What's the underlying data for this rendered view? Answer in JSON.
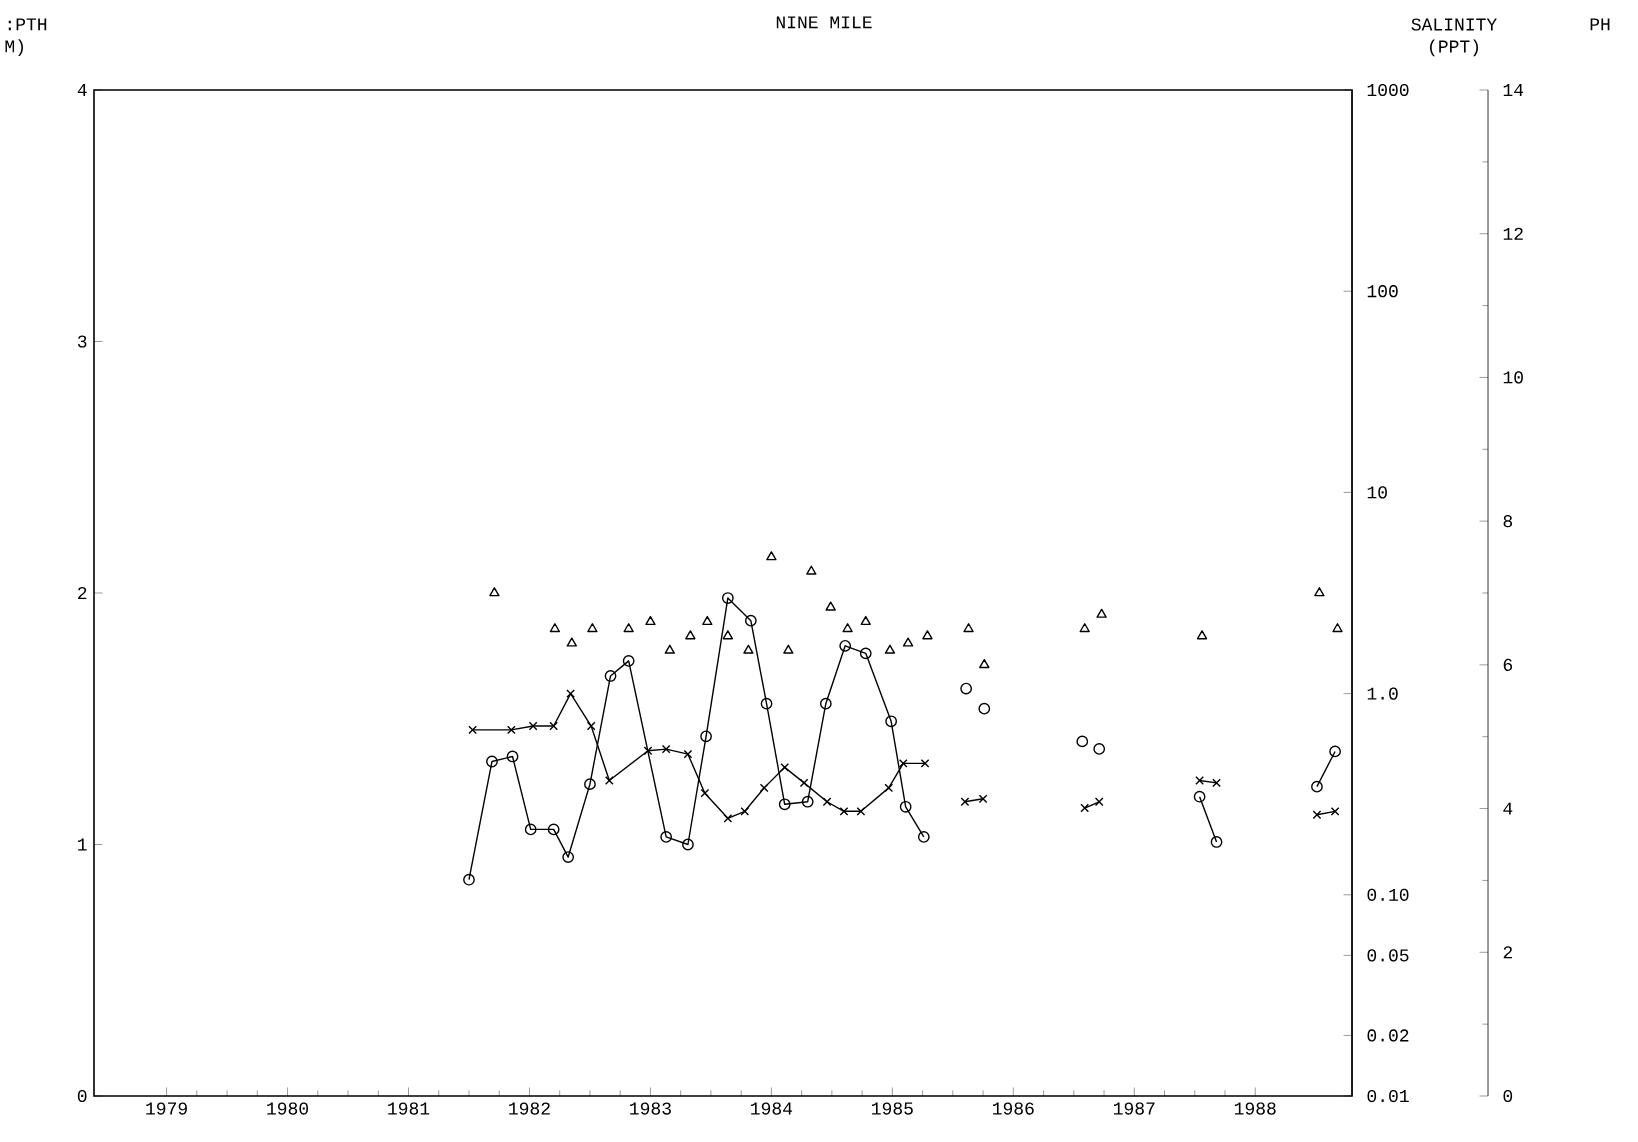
{
  "chart_data": {
    "type": "line",
    "title": "NINE MILE",
    "ylabel": ":PTH M)",
    "y2label": "SALINITY (PPT)",
    "y3label": "PH",
    "xlim": [
      1978.4,
      1988.8
    ],
    "xticks": [
      {
        "value": 1979,
        "label": "1979"
      },
      {
        "value": 1980,
        "label": "1980"
      },
      {
        "value": 1981,
        "label": "1981"
      },
      {
        "value": 1982,
        "label": "1982"
      },
      {
        "value": 1983,
        "label": "1983"
      },
      {
        "value": 1984,
        "label": "1984"
      },
      {
        "value": 1985,
        "label": "1985"
      },
      {
        "value": 1986,
        "label": "1986"
      },
      {
        "value": 1987,
        "label": "1987"
      },
      {
        "value": 1988,
        "label": "1988"
      }
    ],
    "ylim": [
      0,
      4
    ],
    "yticks": [
      0,
      1,
      2,
      3,
      4
    ],
    "y2lim": [
      0.01,
      1000
    ],
    "y2ticks": [
      {
        "value": 0.01,
        "label": "0.01"
      },
      {
        "value": 0.02,
        "label": "0.02"
      },
      {
        "value": 0.05,
        "label": "0.05"
      },
      {
        "value": 0.1,
        "label": "0.10"
      },
      {
        "value": 1,
        "label": "1.0"
      },
      {
        "value": 10,
        "label": "10"
      },
      {
        "value": 100,
        "label": "100"
      },
      {
        "value": 1000,
        "label": "1000"
      }
    ],
    "y3lim": [
      0,
      14
    ],
    "y3ticks": [
      0,
      2,
      4,
      6,
      8,
      10,
      12,
      14
    ],
    "log": "y2",
    "grid": false,
    "series": [
      {
        "type": "line",
        "marker": "circle",
        "color": "#000000",
        "x": [
          1981.5,
          1981.69,
          1981.86,
          1982.01,
          1982.2,
          1982.32,
          1982.5,
          1982.67,
          1982.82,
          1983.13,
          1983.31,
          1983.46,
          1983.64,
          1983.83,
          1983.96,
          1984.11,
          1984.3,
          1984.45,
          1984.61,
          1984.78,
          1984.99,
          1985.11,
          1985.26
        ],
        "values": [
          0.86,
          1.33,
          1.35,
          1.06,
          1.06,
          0.95,
          1.24,
          1.67,
          1.73,
          1.03,
          1.0,
          1.43,
          1.98,
          1.89,
          1.56,
          1.16,
          1.17,
          1.56,
          1.79,
          1.76,
          1.49,
          1.15,
          1.03
        ]
      },
      {
        "type": "scatter",
        "marker": "circle",
        "color": "#000000",
        "x": [
          1985.61,
          1985.76,
          1986.57,
          1986.71
        ],
        "values": [
          1.62,
          1.54,
          1.41,
          1.38
        ]
      },
      {
        "type": "line",
        "marker": "circle",
        "color": "#000000",
        "x": [
          1987.54,
          1987.68
        ],
        "values": [
          1.19,
          1.01
        ]
      },
      {
        "type": "line",
        "marker": "circle",
        "color": "#000000",
        "x": [
          1988.51,
          1988.66
        ],
        "values": [
          1.23,
          1.37
        ]
      },
      {
        "type": "line",
        "marker": "cross",
        "axis": "y2",
        "color": "#000000",
        "x": [
          1981.53,
          1981.69,
          1981.85,
          1982.03,
          1982.2,
          1982.34,
          1982.51,
          1982.66,
          1982.98,
          1983.13,
          1983.31,
          1983.45,
          1983.64,
          1983.78,
          1983.94,
          1984.11,
          1984.27,
          1984.46,
          1984.6,
          1984.74,
          1984.97,
          1985.09,
          1985.27
        ],
        "values": [
          0.66,
          null,
          0.66,
          0.69,
          0.69,
          1.0,
          0.69,
          0.37,
          0.52,
          0.53,
          0.5,
          0.32,
          0.24,
          0.26,
          0.34,
          0.43,
          0.36,
          0.29,
          0.26,
          0.26,
          0.34,
          0.45,
          0.45
        ]
      },
      {
        "type": "line",
        "marker": "cross",
        "axis": "y2",
        "color": "#000000",
        "x": [
          1985.6,
          1985.75
        ],
        "values": [
          0.29,
          0.3
        ]
      },
      {
        "type": "line",
        "marker": "cross",
        "axis": "y2",
        "color": "#000000",
        "x": [
          1986.59,
          1986.71
        ],
        "values": [
          0.27,
          0.29
        ]
      },
      {
        "type": "line",
        "marker": "cross",
        "axis": "y2",
        "color": "#000000",
        "x": [
          1987.54,
          1987.68
        ],
        "values": [
          0.37,
          0.36
        ]
      },
      {
        "type": "line",
        "marker": "cross",
        "axis": "y2",
        "color": "#000000",
        "x": [
          1988.51,
          1988.66
        ],
        "values": [
          0.25,
          0.26
        ]
      },
      {
        "type": "scatter",
        "marker": "triangle",
        "axis": "y3",
        "color": "#000000",
        "x": [
          1981.71,
          1982.21,
          1982.35,
          1982.52,
          1982.82,
          1983.0,
          1983.16,
          1983.33,
          1983.47,
          1983.64,
          1983.81,
          1984.0,
          1984.14,
          1984.33,
          1984.49,
          1984.63,
          1984.78,
          1984.98,
          1985.13,
          1985.29,
          1985.63,
          1985.76,
          1986.59,
          1986.73,
          1987.56,
          1988.53,
          1988.68
        ],
        "values": [
          7.0,
          6.5,
          6.3,
          6.5,
          6.5,
          6.6,
          6.2,
          6.4,
          6.6,
          6.4,
          6.2,
          7.5,
          6.2,
          7.3,
          6.8,
          6.5,
          6.6,
          6.2,
          6.3,
          6.4,
          6.5,
          6.0,
          6.5,
          6.7,
          6.4,
          7.0,
          6.5
        ]
      }
    ]
  }
}
